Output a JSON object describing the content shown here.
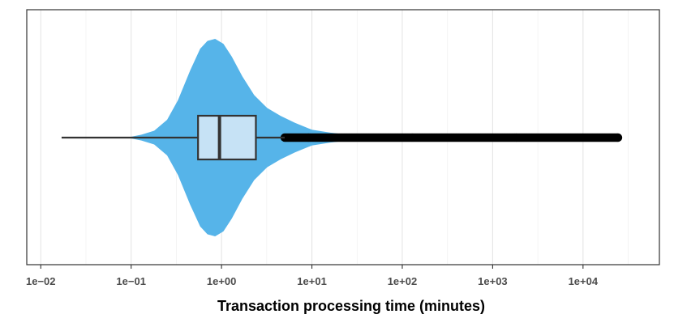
{
  "chart_data": {
    "type": "violin",
    "xlabel": "Transaction processing time (minutes)",
    "x_scale": "log10",
    "xlim": [
      0.007,
      70000
    ],
    "x_ticks": [
      {
        "value": 0.01,
        "label": "1e−02"
      },
      {
        "value": 0.1,
        "label": "1e−01"
      },
      {
        "value": 1,
        "label": "1e+00"
      },
      {
        "value": 10,
        "label": "1e+01"
      },
      {
        "value": 100,
        "label": "1e+02"
      },
      {
        "value": 1000,
        "label": "1e+03"
      },
      {
        "value": 10000,
        "label": "1e+04"
      }
    ],
    "grid": true,
    "violin": {
      "color": "#56B4E9",
      "density_profile": [
        {
          "x": 0.09,
          "d": 0.0
        },
        {
          "x": 0.13,
          "d": 0.03
        },
        {
          "x": 0.18,
          "d": 0.07
        },
        {
          "x": 0.25,
          "d": 0.18
        },
        {
          "x": 0.33,
          "d": 0.38
        },
        {
          "x": 0.45,
          "d": 0.68
        },
        {
          "x": 0.58,
          "d": 0.9
        },
        {
          "x": 0.7,
          "d": 0.98
        },
        {
          "x": 0.85,
          "d": 1.0
        },
        {
          "x": 1.05,
          "d": 0.95
        },
        {
          "x": 1.3,
          "d": 0.82
        },
        {
          "x": 1.7,
          "d": 0.62
        },
        {
          "x": 2.3,
          "d": 0.43
        },
        {
          "x": 3.2,
          "d": 0.3
        },
        {
          "x": 4.5,
          "d": 0.22
        },
        {
          "x": 6.5,
          "d": 0.15
        },
        {
          "x": 10,
          "d": 0.08
        },
        {
          "x": 16,
          "d": 0.05
        },
        {
          "x": 25,
          "d": 0.03
        },
        {
          "x": 40,
          "d": 0.018
        },
        {
          "x": 45,
          "d": 0.0
        }
      ]
    },
    "boxplot": {
      "color": "#C6E2F5",
      "whisker_low": 0.017,
      "q1": 0.55,
      "median": 0.95,
      "q3": 2.4,
      "whisker_high": 5.0,
      "outliers_from": 5.0,
      "outliers_to": 25000
    }
  }
}
